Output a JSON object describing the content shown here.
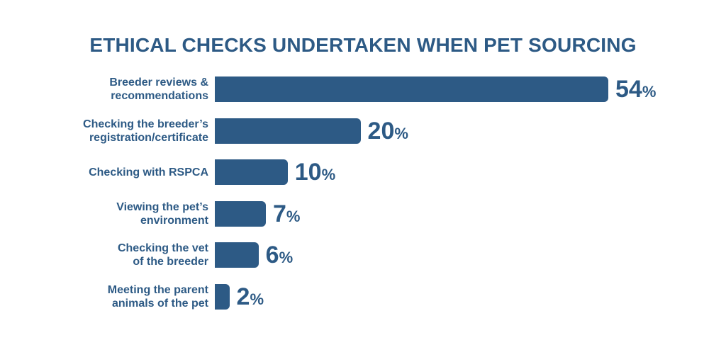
{
  "chart_data": {
    "type": "bar",
    "orientation": "horizontal",
    "title": "ETHICAL CHECKS UNDERTAKEN WHEN PET SOURCING",
    "categories": [
      [
        "Breeder reviews &",
        "recommendations"
      ],
      [
        "Checking the breeder’s",
        "registration/certificate"
      ],
      [
        "Checking with RSPCA"
      ],
      [
        "Viewing the pet’s",
        "environment"
      ],
      [
        "Checking the vet",
        "of the breeder"
      ],
      [
        "Meeting the parent",
        "animals of the pet"
      ]
    ],
    "values": [
      54,
      20,
      10,
      7,
      6,
      2
    ],
    "value_suffix": "%",
    "xlim": [
      0,
      54
    ],
    "grid": false,
    "legend": "none"
  },
  "colors": {
    "bar": "#2d5a85",
    "title": "#2d5a85",
    "value_text": "#2d5a85"
  }
}
